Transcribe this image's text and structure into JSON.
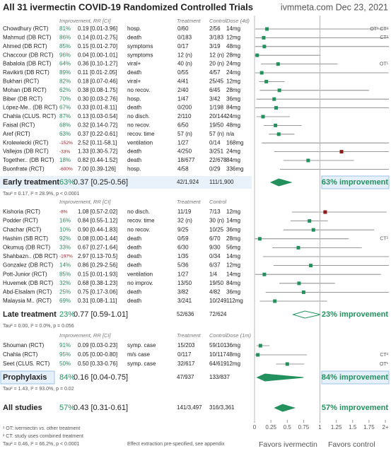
{
  "chart_data": {
    "type": "forest",
    "title": "All 31 ivermectin COVID-19 Randomized Controlled Trials",
    "source": "ivmmeta.com Dec 23, 2021",
    "xlim": [
      0,
      2
    ],
    "xticks": [
      0,
      0.25,
      0.5,
      0.75,
      1,
      1.25,
      1.5,
      1.75,
      {
        "value": 2,
        "label": "2+"
      }
    ],
    "x_label_left": "Favors ivermectin",
    "x_label_right": "Favors control",
    "color": "#23915e",
    "harm_color": "#8b1c1c",
    "groups": [
      {
        "headers": {
          "improvement": "Improvement, RR [CI]",
          "treatment": "Treatment",
          "control": "Control",
          "dose": "Dose (4d)"
        },
        "studies": [
          {
            "name": "Chowdhury (RCT)",
            "improvement": "81%",
            "rr": 0.19,
            "lo": 0.01,
            "hi": 3.96,
            "rr_label": "0.19 [0.01-3.96]",
            "outcome": "hosp.",
            "treatment": "0/60",
            "control": "2/56",
            "dose": "14mg",
            "note": "OT¹ CT²"
          },
          {
            "name": "Mahmud (DB RCT)",
            "improvement": "86%",
            "rr": 0.14,
            "lo": 0.01,
            "hi": 2.75,
            "rr_label": "0.14 [0.01-2.75]",
            "outcome": "death",
            "treatment": "0/183",
            "control": "3/183",
            "dose": "12mg",
            "note": "CT²"
          },
          {
            "name": "Ahmed (DB RCT)",
            "improvement": "85%",
            "rr": 0.15,
            "lo": 0.01,
            "hi": 2.7,
            "rr_label": "0.15 [0.01-2.70]",
            "outcome": "symptoms",
            "treatment": "0/17",
            "control": "3/19",
            "dose": "48mg"
          },
          {
            "name": "Chaccour (DB RCT)",
            "improvement": "96%",
            "rr": 0.04,
            "lo": 0.0,
            "hi": 1.01,
            "rr_label": "0.04 [0.00-1.01]",
            "outcome": "symptoms",
            "treatment": "12 (n)",
            "control": "12 (n)",
            "dose": "28mg"
          },
          {
            "name": "Babalola (DB RCT)",
            "improvement": "64%",
            "rr": 0.36,
            "lo": 0.1,
            "hi": 1.27,
            "rr_label": "0.36 [0.10-1.27]",
            "outcome": "viral+",
            "treatment": "40 (n)",
            "control": "20 (n)",
            "dose": "24mg",
            "note": "OT¹"
          },
          {
            "name": "Ravikirti (DB RCT)",
            "improvement": "89%",
            "rr": 0.11,
            "lo": 0.01,
            "hi": 2.05,
            "rr_label": "0.11 [0.01-2.05]",
            "outcome": "death",
            "treatment": "0/55",
            "control": "4/57",
            "dose": "24mg"
          },
          {
            "name": "Bukhari (RCT)",
            "improvement": "82%",
            "rr": 0.18,
            "lo": 0.07,
            "hi": 0.46,
            "rr_label": "0.18 [0.07-0.46]",
            "outcome": "viral+",
            "treatment": "4/41",
            "control": "25/45",
            "dose": "12mg"
          },
          {
            "name": "Mohan (DB RCT)",
            "improvement": "62%",
            "rr": 0.38,
            "lo": 0.08,
            "hi": 1.75,
            "rr_label": "0.38 [0.08-1.75]",
            "outcome": "no recov.",
            "treatment": "2/40",
            "control": "6/45",
            "dose": "28mg"
          },
          {
            "name": "Biber (DB RCT)",
            "improvement": "70%",
            "rr": 0.3,
            "lo": 0.03,
            "hi": 2.76,
            "rr_label": "0.30 [0.03-2.76]",
            "outcome": "hosp.",
            "treatment": "1/47",
            "control": "3/42",
            "dose": "36mg"
          },
          {
            "name": "López-Me.. (DB RCT)",
            "improvement": "67%",
            "rr": 0.33,
            "lo": 0.01,
            "hi": 8.11,
            "rr_label": "0.33 [0.01-8.11]",
            "outcome": "death",
            "treatment": "0/200",
            "control": "1/198",
            "dose": "84mg"
          },
          {
            "name": "Chahla (CLUS. RCT)",
            "improvement": "87%",
            "rr": 0.13,
            "lo": 0.03,
            "hi": 0.54,
            "rr_label": "0.13 [0.03-0.54]",
            "outcome": "no disch.",
            "treatment": "2/110",
            "control": "20/144",
            "dose": "24mg"
          },
          {
            "name": "Faisal (RCT)",
            "improvement": "68%",
            "rr": 0.32,
            "lo": 0.14,
            "hi": 0.72,
            "rr_label": "0.32 [0.14-0.72]",
            "outcome": "no recov.",
            "treatment": "6/50",
            "control": "19/50",
            "dose": "48mg"
          },
          {
            "name": "Aref (RCT)",
            "improvement": "63%",
            "rr": 0.37,
            "lo": 0.22,
            "hi": 0.61,
            "rr_label": "0.37 [0.22-0.61]",
            "outcome": "recov. time",
            "treatment": "57 (n)",
            "control": "57 (n)",
            "dose": "n/a"
          },
          {
            "name": "Krolewiecki (RCT)",
            "improvement": "-152%",
            "rr": 2.52,
            "lo": 0.11,
            "hi": 58.1,
            "rr_label": "2.52 [0.11-58.1]",
            "outcome": "ventilation",
            "treatment": "1/27",
            "control": "0/14",
            "dose": "168mg"
          },
          {
            "name": "Vallejos (DB RCT)",
            "improvement": "-33%",
            "rr": 1.33,
            "lo": 0.3,
            "hi": 5.72,
            "rr_label": "1.33 [0.30-5.72]",
            "outcome": "death",
            "treatment": "4/250",
            "control": "3/251",
            "dose": "24mg"
          },
          {
            "name": "Together.. (DB RCT)",
            "improvement": "18%",
            "rr": 0.82,
            "lo": 0.44,
            "hi": 1.52,
            "rr_label": "0.82 [0.44-1.52]",
            "outcome": "death",
            "treatment": "18/677",
            "control": "22/678",
            "dose": "84mg"
          },
          {
            "name": "Buonfrate (RCT)",
            "improvement": "-600%",
            "rr": 7.0,
            "lo": 0.39,
            "hi": 126,
            "rr_label": "7.00 [0.39-126]",
            "outcome": "hosp.",
            "treatment": "4/58",
            "control": "0/29",
            "dose": "336mg"
          }
        ],
        "summary": {
          "name": "Early treatment",
          "improvement": "63%",
          "rr": 0.37,
          "lo": 0.25,
          "hi": 0.56,
          "rr_label": "0.37 [0.25-0.56]",
          "treatment": "42/1,924",
          "control": "111/1,900",
          "result": "63% improvement"
        },
        "heterogeneity": "Tau² = 0.17, I² = 28.9%, p < 0.0001"
      },
      {
        "headers": {
          "improvement": "Improvement, RR [CI]",
          "treatment": "Treatment",
          "control": "Control"
        },
        "studies": [
          {
            "name": "Kishoria (RCT)",
            "improvement": "-8%",
            "rr": 1.08,
            "lo": 0.57,
            "hi": 2.02,
            "rr_label": "1.08 [0.57-2.02]",
            "outcome": "no disch.",
            "treatment": "11/19",
            "control": "7/13",
            "dose": "12mg"
          },
          {
            "name": "Podder (RCT)",
            "improvement": "16%",
            "rr": 0.84,
            "lo": 0.55,
            "hi": 1.12,
            "rr_label": "0.84 [0.55-1.12]",
            "outcome": "recov. time",
            "treatment": "32 (n)",
            "control": "30 (n)",
            "dose": "14mg"
          },
          {
            "name": "Chachar (RCT)",
            "improvement": "10%",
            "rr": 0.9,
            "lo": 0.44,
            "hi": 1.83,
            "rr_label": "0.90 [0.44-1.83]",
            "outcome": "no recov.",
            "treatment": "9/25",
            "control": "10/25",
            "dose": "36mg"
          },
          {
            "name": "Hashim (SB RCT)",
            "improvement": "92%",
            "rr": 0.08,
            "lo": 0.0,
            "hi": 1.44,
            "rr_label": "0.08 [0.00-1.44]",
            "outcome": "death",
            "treatment": "0/59",
            "control": "6/70",
            "dose": "28mg",
            "note": "CT²"
          },
          {
            "name": "Okumuş (DB RCT)",
            "improvement": "33%",
            "rr": 0.67,
            "lo": 0.27,
            "hi": 1.64,
            "rr_label": "0.67 [0.27-1.64]",
            "outcome": "death",
            "treatment": "6/30",
            "control": "9/30",
            "dose": "56mg"
          },
          {
            "name": "Shahbazn.. (DB RCT)",
            "improvement": "-197%",
            "rr": 2.97,
            "lo": 0.13,
            "hi": 70.5,
            "rr_label": "2.97 [0.13-70.5]",
            "outcome": "death",
            "treatment": "1/35",
            "control": "0/34",
            "dose": "14mg"
          },
          {
            "name": "Gonzalez (DB RCT)",
            "improvement": "14%",
            "rr": 0.86,
            "lo": 0.29,
            "hi": 2.56,
            "rr_label": "0.86 [0.29-2.56]",
            "outcome": "death",
            "treatment": "5/36",
            "control": "6/37",
            "dose": "12mg"
          },
          {
            "name": "Pott-Junior (RCT)",
            "improvement": "85%",
            "rr": 0.15,
            "lo": 0.01,
            "hi": 1.93,
            "rr_label": "0.15 [0.01-1.93]",
            "outcome": "ventilation",
            "treatment": "1/27",
            "control": "1/4",
            "dose": "14mg"
          },
          {
            "name": "Huvemek (DB RCT)",
            "improvement": "32%",
            "rr": 0.68,
            "lo": 0.38,
            "hi": 1.23,
            "rr_label": "0.68 [0.38-1.23]",
            "outcome": "no improv.",
            "treatment": "13/50",
            "control": "19/50",
            "dose": "84mg"
          },
          {
            "name": "Abd-Elsalam (RCT)",
            "improvement": "25%",
            "rr": 0.75,
            "lo": 0.17,
            "hi": 3.06,
            "rr_label": "0.75 [0.17-3.06]",
            "outcome": "death",
            "treatment": "3/82",
            "control": "4/82",
            "dose": "36mg"
          },
          {
            "name": "Malaysia M.. (RCT)",
            "improvement": "69%",
            "rr": 0.31,
            "lo": 0.08,
            "hi": 1.11,
            "rr_label": "0.31 [0.08-1.11]",
            "outcome": "death",
            "treatment": "3/241",
            "control": "10/249",
            "dose": "112mg"
          }
        ],
        "summary": {
          "name": "Late treatment",
          "improvement": "23%",
          "rr": 0.77,
          "lo": 0.59,
          "hi": 1.01,
          "rr_label": "0.77 [0.59-1.01]",
          "treatment": "52/636",
          "control": "72/624",
          "result": "23% improvement"
        },
        "heterogeneity": "Tau² = 0.00, I² = 0.0%, p = 0.056"
      },
      {
        "headers": {
          "improvement": "Improvement, RR [CI]",
          "treatment": "Treatment",
          "control": "Control",
          "dose": "Dose (1m)"
        },
        "studies": [
          {
            "name": "Shouman (RCT)",
            "improvement": "91%",
            "rr": 0.09,
            "lo": 0.03,
            "hi": 0.23,
            "rr_label": "0.09 [0.03-0.23]",
            "outcome": "symp. case",
            "treatment": "15/203",
            "control": "59/101",
            "dose": "36mg"
          },
          {
            "name": "Chahla (RCT)",
            "improvement": "95%",
            "rr": 0.05,
            "lo": 0.0,
            "hi": 0.8,
            "rr_label": "0.05 [0.00-0.80]",
            "outcome": "m/s case",
            "treatment": "0/117",
            "control": "10/117",
            "dose": "48mg",
            "note": "CT²"
          },
          {
            "name": "Seet (CLUS. RCT)",
            "improvement": "50%",
            "rr": 0.5,
            "lo": 0.33,
            "hi": 0.76,
            "rr_label": "0.50 [0.33-0.76]",
            "outcome": "symp. case",
            "treatment": "32/617",
            "control": "64/619",
            "dose": "12mg",
            "note": "OT¹"
          }
        ],
        "summary": {
          "name": "Prophylaxis",
          "improvement": "84%",
          "rr": 0.16,
          "lo": 0.04,
          "hi": 0.75,
          "rr_label": "0.16 [0.04-0.75]",
          "treatment": "47/937",
          "control": "133/837",
          "result": "84% improvement"
        },
        "heterogeneity": "Tau² = 1.43, I² = 93.0%, p = 0.02"
      }
    ],
    "overall": {
      "name": "All studies",
      "improvement": "57%",
      "rr": 0.43,
      "lo": 0.31,
      "hi": 0.61,
      "rr_label": "0.43 [0.31-0.61]",
      "treatment": "141/3,497",
      "control": "316/3,361",
      "result": "57% improvement"
    },
    "footnotes": [
      "¹ OT: ivermectin vs. other treatment",
      "² CT: study uses combined treatment",
      "Tau² = 0.46, I² = 66.2%, p < 0.0001"
    ],
    "extraction_note": "Effect extraction pre-specified, see appendix"
  }
}
